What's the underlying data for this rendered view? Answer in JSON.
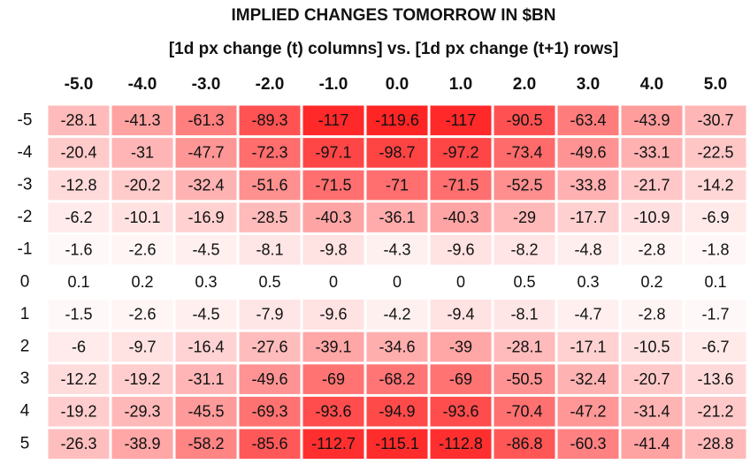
{
  "chart_data": {
    "type": "heatmap",
    "title": "IMPLIED CHANGES TOMORROW IN $BN",
    "subtitle": "[1d px change (t) columns] vs. [1d px change (t+1) rows]",
    "x_categories": [
      "-5.0",
      "-4.0",
      "-3.0",
      "-2.0",
      "-1.0",
      "0.0",
      "1.0",
      "2.0",
      "3.0",
      "4.0",
      "5.0"
    ],
    "y_categories": [
      "-5",
      "-4",
      "-3",
      "-2",
      "-1",
      "0",
      "1",
      "2",
      "3",
      "4",
      "5"
    ],
    "color": "#ff0000",
    "values": [
      [
        -28.1,
        -41.3,
        -61.3,
        -89.3,
        -117,
        -119.6,
        -117,
        -90.5,
        -63.4,
        -43.9,
        -30.7
      ],
      [
        -20.4,
        -31,
        -47.7,
        -72.3,
        -97.1,
        -98.7,
        -97.2,
        -73.4,
        -49.6,
        -33.1,
        -22.5
      ],
      [
        -12.8,
        -20.2,
        -32.4,
        -51.6,
        -71.5,
        -71,
        -71.5,
        -52.5,
        -33.8,
        -21.7,
        -14.2
      ],
      [
        -6.2,
        -10.1,
        -16.9,
        -28.5,
        -40.3,
        -36.1,
        -40.3,
        -29,
        -17.7,
        -10.9,
        -6.9
      ],
      [
        -1.6,
        -2.6,
        -4.5,
        -8.1,
        -9.8,
        -4.3,
        -9.6,
        -8.2,
        -4.8,
        -2.8,
        -1.8
      ],
      [
        0.1,
        0.2,
        0.3,
        0.5,
        0,
        0,
        0,
        0.5,
        0.3,
        0.2,
        0.1
      ],
      [
        -1.5,
        -2.6,
        -4.5,
        -7.9,
        -9.6,
        -4.2,
        -9.4,
        -8.1,
        -4.7,
        -2.8,
        -1.7
      ],
      [
        -6,
        -9.7,
        -16.4,
        -27.6,
        -39.1,
        -34.6,
        -39,
        -28.1,
        -17.1,
        -10.5,
        -6.7
      ],
      [
        -12.2,
        -19.2,
        -31.1,
        -49.6,
        -69,
        -68.2,
        -69,
        -50.5,
        -32.4,
        -20.7,
        -13.6
      ],
      [
        -19.2,
        -29.3,
        -45.5,
        -69.3,
        -93.6,
        -94.9,
        -93.6,
        -70.4,
        -47.2,
        -31.4,
        -21.2
      ],
      [
        -26.3,
        -38.9,
        -58.2,
        -85.6,
        -112.7,
        -115.1,
        -112.8,
        -86.8,
        -60.3,
        -41.4,
        -28.8
      ]
    ]
  }
}
